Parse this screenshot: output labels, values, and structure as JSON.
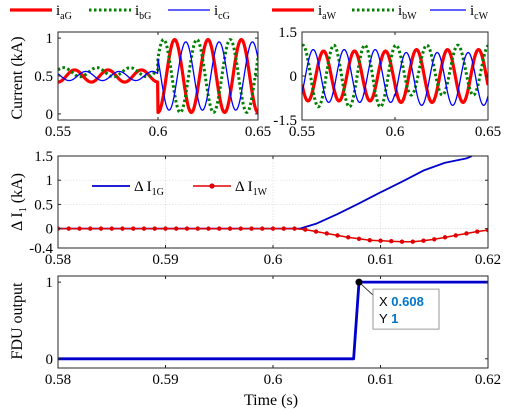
{
  "chart_data": [
    {
      "id": "g",
      "type": "line",
      "ylabel": "Current (kA)",
      "xlim": [
        0.55,
        0.65
      ],
      "ylim": [
        -0.08,
        1.08
      ],
      "xticks": [
        0.55,
        0.6,
        0.65
      ],
      "xtick_labels": [
        "0.55",
        "0.6",
        "0.65"
      ],
      "yticks": [
        0,
        0.5,
        1
      ],
      "ytick_labels": [
        "0",
        "0.5",
        "1"
      ],
      "grid": false,
      "frequency_hz": 60,
      "fault_time": 0.6,
      "legend": [
        {
          "main": "i",
          "sub": "aG"
        },
        {
          "main": "i",
          "sub": "bG"
        },
        {
          "main": "i",
          "sub": "cG"
        }
      ],
      "series": [
        {
          "color": "#ff0000",
          "style": "solid",
          "width": 3.2,
          "pre_offset": 0.5,
          "pre_amp": 0.08,
          "post_offset": 0.5,
          "post_amp": 0.48,
          "phase_deg": -90
        },
        {
          "color": "#008000",
          "style": "dotted",
          "width": 3.0,
          "pre_offset": 0.55,
          "pre_amp": 0.06,
          "post_offset": 0.5,
          "post_amp": 0.48,
          "phase_deg": 30
        },
        {
          "color": "#0000ff",
          "style": "solid",
          "width": 1.3,
          "pre_offset": 0.5,
          "pre_amp": 0.06,
          "post_offset": 0.5,
          "post_amp": 0.45,
          "phase_deg": 150
        }
      ]
    },
    {
      "id": "w",
      "type": "line",
      "xlim": [
        0.55,
        0.65
      ],
      "ylim": [
        -1.5,
        1.5
      ],
      "xticks": [
        0.55,
        0.6,
        0.65
      ],
      "xtick_labels": [
        "0.55",
        "0.6",
        "0.65"
      ],
      "yticks": [
        -1.5,
        0,
        1.5
      ],
      "ytick_labels": [
        "-1.5",
        "0",
        "1.5"
      ],
      "grid": false,
      "frequency_hz": 60,
      "fault_time": 0.6,
      "legend": [
        {
          "main": "i",
          "sub": "aW"
        },
        {
          "main": "i",
          "sub": "bW"
        },
        {
          "main": "i",
          "sub": "cW"
        }
      ],
      "series": [
        {
          "color": "#ff0000",
          "style": "solid",
          "width": 3.2,
          "pre_offset": 0,
          "pre_amp": 0.85,
          "post_offset": 0,
          "post_amp": 0.9,
          "phase_deg": 200
        },
        {
          "color": "#008000",
          "style": "dotted",
          "width": 3.0,
          "pre_offset": 0,
          "pre_amp": 1.05,
          "post_offset": 0.2,
          "post_amp": 0.85,
          "phase_deg": 80
        },
        {
          "color": "#0000ff",
          "style": "solid",
          "width": 1.3,
          "pre_offset": 0,
          "pre_amp": 0.9,
          "post_offset": -0.1,
          "post_amp": 0.9,
          "phase_deg": -40
        }
      ]
    },
    {
      "id": "delta",
      "type": "line",
      "ylabel_main": "Δ I",
      "ylabel_sub": "1",
      "ylabel_unit": " (kA)",
      "xlim": [
        0.58,
        0.62
      ],
      "ylim": [
        -0.4,
        1.5
      ],
      "xticks": [
        0.58,
        0.59,
        0.6,
        0.61,
        0.62
      ],
      "xtick_labels": [
        "0.58",
        "0.59",
        "0.6",
        "0.61",
        "0.62"
      ],
      "yticks": [
        -0.4,
        0,
        0.5,
        1,
        1.5
      ],
      "ytick_labels": [
        "-0.4",
        "0",
        "0.5",
        "1",
        "1.5"
      ],
      "grid": true,
      "legend": [
        {
          "main": "Δ I",
          "sub": "1G"
        },
        {
          "main": "Δ I",
          "sub": "1W"
        }
      ],
      "series": [
        {
          "color": "#0000cc",
          "width": 1.8,
          "marker": false,
          "x": [
            0.58,
            0.6025,
            0.604,
            0.606,
            0.608,
            0.61,
            0.612,
            0.614,
            0.616,
            0.618,
            0.6185
          ],
          "y": [
            0,
            0,
            0.1,
            0.3,
            0.52,
            0.75,
            0.97,
            1.2,
            1.36,
            1.45,
            1.5
          ]
        },
        {
          "color": "#e00000",
          "width": 1.5,
          "marker": true,
          "x": [
            0.58,
            0.581,
            0.582,
            0.583,
            0.584,
            0.585,
            0.586,
            0.587,
            0.588,
            0.589,
            0.59,
            0.591,
            0.592,
            0.593,
            0.594,
            0.595,
            0.596,
            0.597,
            0.598,
            0.599,
            0.6,
            0.601,
            0.602,
            0.603,
            0.604,
            0.605,
            0.606,
            0.607,
            0.608,
            0.609,
            0.61,
            0.611,
            0.612,
            0.613,
            0.614,
            0.615,
            0.616,
            0.617,
            0.618,
            0.619,
            0.62
          ],
          "y": [
            0,
            0,
            0,
            0,
            0,
            0,
            0,
            0,
            0,
            0,
            0,
            0,
            0,
            0,
            0,
            0,
            0,
            0,
            0,
            0,
            0,
            0,
            0,
            -0.02,
            -0.06,
            -0.1,
            -0.14,
            -0.18,
            -0.21,
            -0.24,
            -0.25,
            -0.26,
            -0.27,
            -0.27,
            -0.25,
            -0.22,
            -0.18,
            -0.14,
            -0.1,
            -0.06,
            -0.03
          ]
        }
      ]
    },
    {
      "id": "fdu",
      "type": "line",
      "ylabel": "FDU output",
      "xlabel": "Time (s)",
      "xlim": [
        0.58,
        0.62
      ],
      "ylim": [
        -0.12,
        1.08
      ],
      "xticks": [
        0.58,
        0.59,
        0.6,
        0.61,
        0.62
      ],
      "xtick_labels": [
        "0.58",
        "0.59",
        "0.6",
        "0.61",
        "0.62"
      ],
      "yticks": [
        0,
        1
      ],
      "ytick_labels": [
        "0",
        "1"
      ],
      "grid": false,
      "series": [
        {
          "color": "#0000cc",
          "width": 2.8,
          "x": [
            0.58,
            0.6075,
            0.608,
            0.62
          ],
          "y": [
            0,
            0,
            1,
            1
          ]
        }
      ],
      "datatip": {
        "x": 0.608,
        "y": 1,
        "x_key": "X",
        "y_key": "Y",
        "x_label": "0.608",
        "y_label": "1"
      }
    }
  ]
}
